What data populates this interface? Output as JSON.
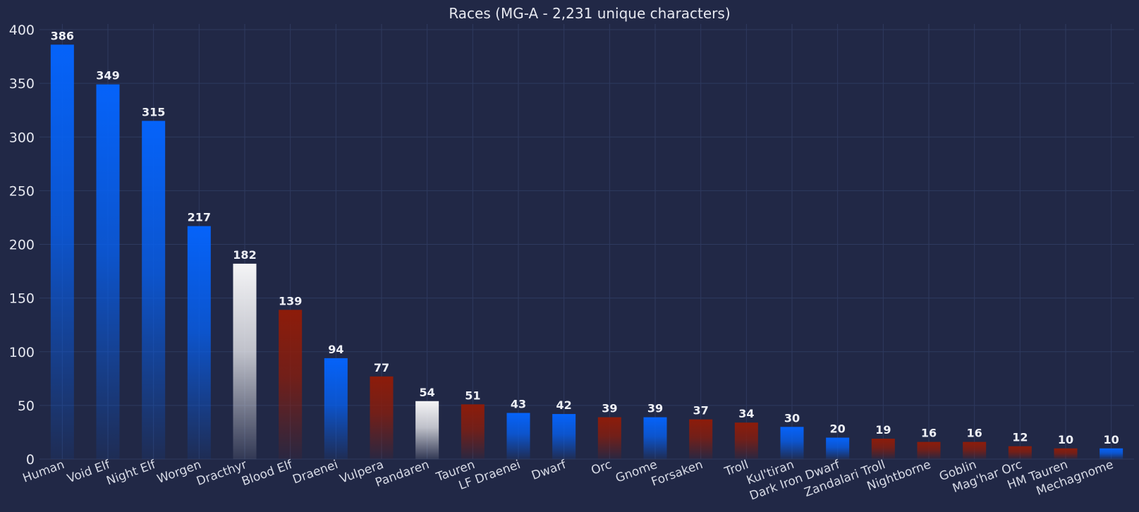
{
  "chart_data": {
    "type": "bar",
    "title": "Races (MG-A - 2,231 unique characters)",
    "xlabel": "",
    "ylabel": "",
    "ylim": [
      0,
      400
    ],
    "yticks": [
      "0",
      "50",
      "100",
      "150",
      "200",
      "250",
      "300",
      "350",
      "400"
    ],
    "grid": true,
    "categories": [
      "Human",
      "Void Elf",
      "Night Elf",
      "Worgen",
      "Dracthyr",
      "Blood Elf",
      "Draenei",
      "Vulpera",
      "Pandaren",
      "Tauren",
      "LF Draenei",
      "Dwarf",
      "Orc",
      "Gnome",
      "Forsaken",
      "Troll",
      "Kul'tiran",
      "Dark Iron Dwarf",
      "Zandalari Troll",
      "Nightborne",
      "Goblin",
      "Mag'har Orc",
      "HM Tauren",
      "Mechagnome"
    ],
    "values": [
      386,
      349,
      315,
      217,
      182,
      139,
      94,
      77,
      54,
      51,
      43,
      42,
      39,
      39,
      37,
      34,
      30,
      20,
      19,
      16,
      16,
      12,
      10,
      10
    ],
    "faction": [
      "alliance",
      "alliance",
      "alliance",
      "alliance",
      "neutral",
      "horde",
      "alliance",
      "horde",
      "neutral",
      "horde",
      "alliance",
      "alliance",
      "horde",
      "alliance",
      "horde",
      "horde",
      "alliance",
      "alliance",
      "horde",
      "horde",
      "horde",
      "horde",
      "horde",
      "alliance"
    ],
    "colors": {
      "alliance": "#0563fa",
      "horde": "#8d1c0a",
      "neutral": "#f4f4f6",
      "background": "#212846"
    }
  }
}
